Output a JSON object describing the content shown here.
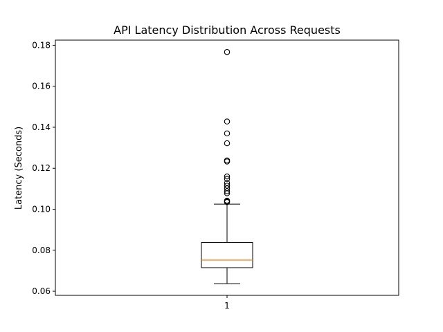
{
  "chart_data": {
    "type": "box",
    "title": "API Latency Distribution Across Requests",
    "xlabel": "",
    "ylabel": "Latency (Seconds)",
    "ylim": [
      0.058,
      0.1825
    ],
    "yticks": [
      0.06,
      0.08,
      0.1,
      0.12,
      0.14,
      0.16,
      0.18
    ],
    "ytick_labels": [
      "0.06",
      "0.08",
      "0.10",
      "0.12",
      "0.14",
      "0.16",
      "0.18"
    ],
    "categories": [
      "1"
    ],
    "boxes": [
      {
        "label": "1",
        "whisker_low": 0.0637,
        "q1": 0.0715,
        "median": 0.0752,
        "q3": 0.0838,
        "whisker_high": 0.1025,
        "outliers": [
          0.1035,
          0.1038,
          0.1042,
          0.1078,
          0.1088,
          0.1102,
          0.1115,
          0.1128,
          0.1148,
          0.116,
          0.1233,
          0.1238,
          0.1322,
          0.137,
          0.1428,
          0.1767
        ]
      }
    ],
    "grid": false,
    "colors": {
      "box": "#000000",
      "median": "#ff7f0e",
      "outlier_edge": "#000000"
    }
  }
}
